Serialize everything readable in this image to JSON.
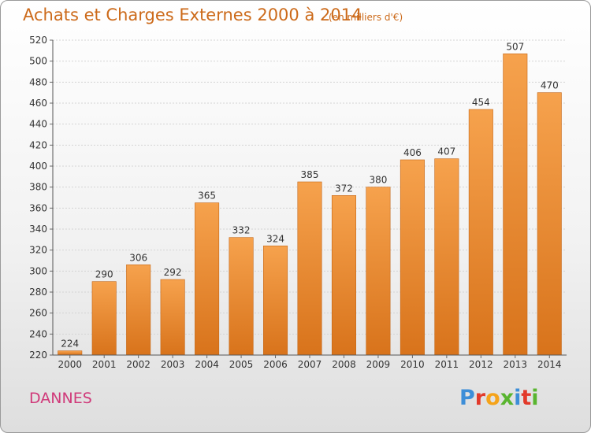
{
  "title": "Achats et Charges Externes 2000 à 2014",
  "subtitle": "(en milliers d'€)",
  "commune": "DANNES",
  "logo": {
    "letters": [
      "P",
      "r",
      "o",
      "x",
      "i",
      "t",
      "i"
    ],
    "colors": [
      "#3d8ed8",
      "#e23a2a",
      "#f5a31a",
      "#59b52f",
      "#3d8ed8",
      "#e23a2a",
      "#59b52f"
    ]
  },
  "colors": {
    "bar_top": "#f6a24d",
    "bar_bottom": "#d8731b",
    "title": "#cc6a1a",
    "commune": "#d03a7a"
  },
  "chart_data": {
    "type": "bar",
    "categories": [
      "2000",
      "2001",
      "2002",
      "2003",
      "2004",
      "2005",
      "2006",
      "2007",
      "2008",
      "2009",
      "2010",
      "2011",
      "2012",
      "2013",
      "2014"
    ],
    "values": [
      224,
      290,
      306,
      292,
      365,
      332,
      324,
      385,
      372,
      380,
      406,
      407,
      454,
      507,
      470
    ],
    "title": "Achats et Charges Externes 2000 à 2014",
    "xlabel": "",
    "ylabel": "",
    "ylim": [
      220,
      520
    ],
    "yticks": [
      220,
      240,
      260,
      280,
      300,
      320,
      340,
      360,
      380,
      400,
      420,
      440,
      460,
      480,
      500,
      520
    ],
    "grid": true,
    "legend": "none"
  }
}
